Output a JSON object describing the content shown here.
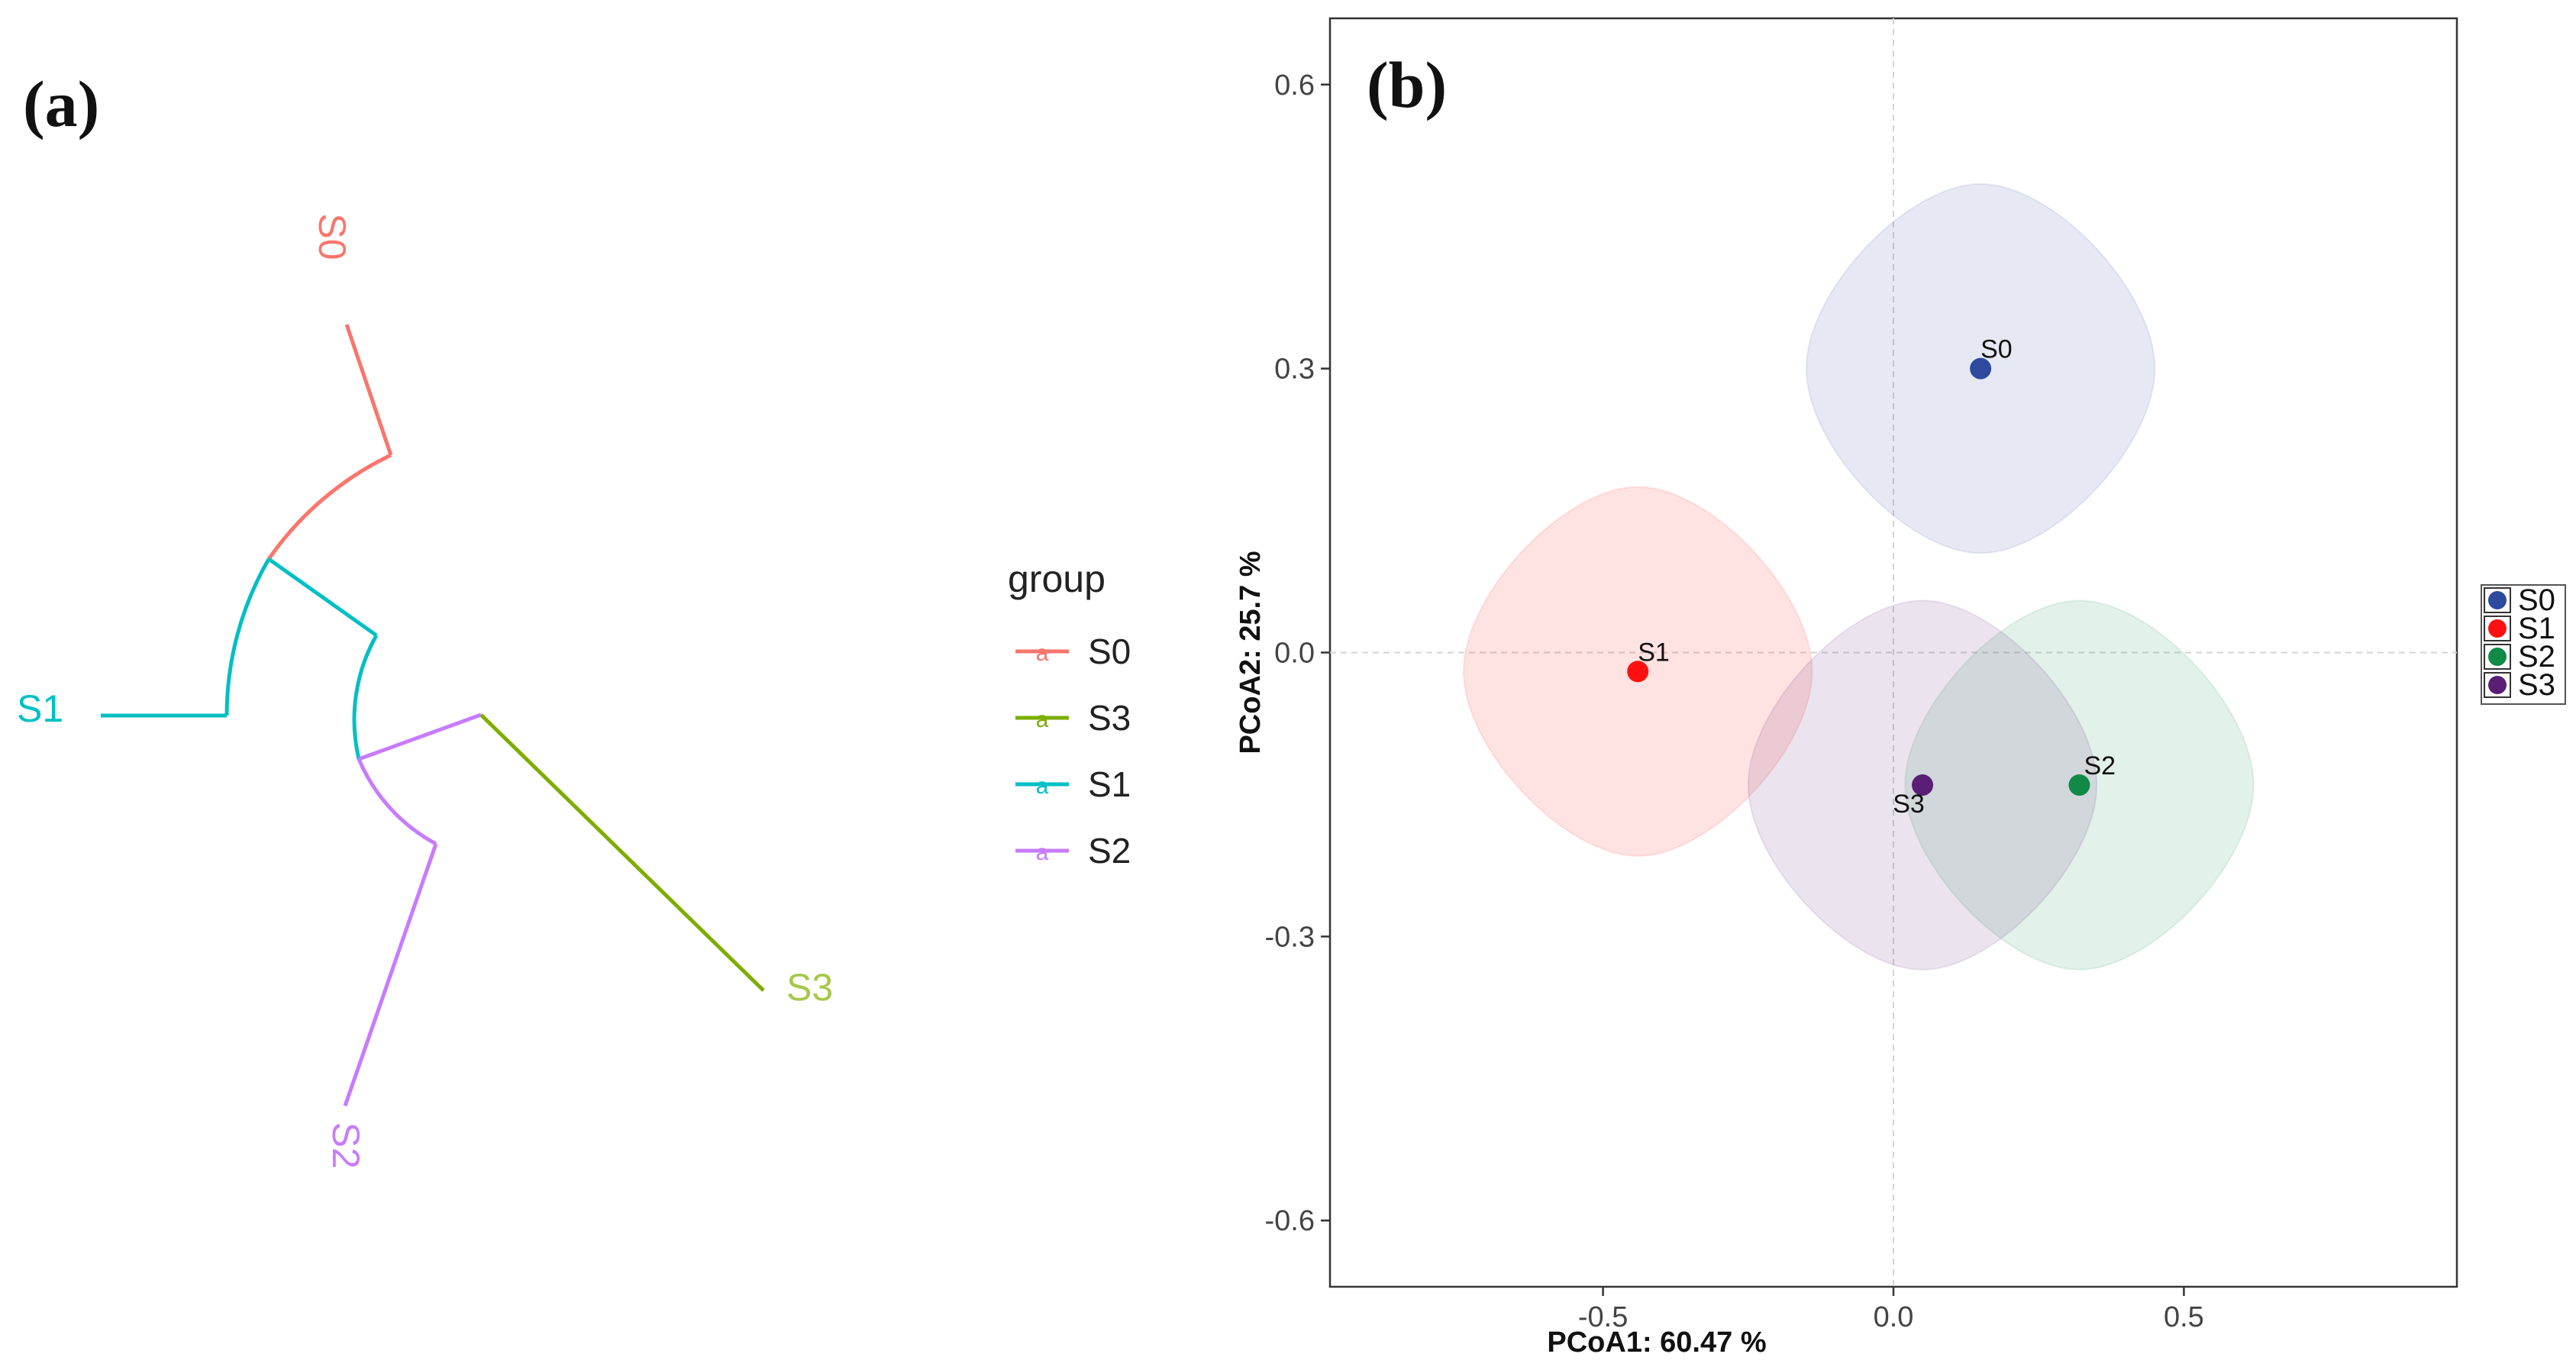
{
  "panels": {
    "a_label": "(a)",
    "b_label": "(b)"
  },
  "colors": {
    "S0_tree": "#F8766D",
    "S3_tree": "#7CAE00",
    "S1_tree": "#00BFC4",
    "S2_tree": "#C77CFF",
    "S0_pcoa": "#2E4A9E",
    "S1_pcoa": "#FF1010",
    "S2_pcoa": "#118A48",
    "S3_pcoa": "#5A1E74"
  },
  "tree": {
    "legend_title": "group",
    "legend_key_glyph": "a",
    "legend_items": [
      {
        "label": "S0",
        "color": "#F8766D"
      },
      {
        "label": "S3",
        "color": "#7CAE00"
      },
      {
        "label": "S1",
        "color": "#00BFC4"
      },
      {
        "label": "S2",
        "color": "#C77CFF"
      }
    ],
    "tips": {
      "S0": "S0",
      "S1": "S1",
      "S2": "S2",
      "S3": "S3"
    }
  },
  "chart_data": {
    "type": "scatter",
    "title": "",
    "xlabel": "PCoA1:  60.47 %",
    "ylabel": "PCoA2:  25.7 %",
    "xlim": [
      -0.97,
      0.97
    ],
    "ylim": [
      -0.67,
      0.67
    ],
    "xticks": [
      -0.5,
      0.0,
      0.5
    ],
    "xtick_labels": [
      "-0.5",
      "0.0",
      "0.5"
    ],
    "yticks": [
      -0.6,
      -0.3,
      0.0,
      0.3,
      0.6
    ],
    "ytick_labels": [
      "-0.6",
      "-0.3",
      "0.0",
      "0.3",
      "0.6"
    ],
    "reference_lines": {
      "x": 0,
      "y": 0
    },
    "points": [
      {
        "name": "S0",
        "x": 0.15,
        "y": 0.3,
        "color": "#2E4A9E"
      },
      {
        "name": "S1",
        "x": -0.44,
        "y": -0.02,
        "color": "#FF1010"
      },
      {
        "name": "S2",
        "x": 0.32,
        "y": -0.14,
        "color": "#118A48"
      },
      {
        "name": "S3",
        "x": 0.05,
        "y": -0.14,
        "color": "#5A1E74"
      }
    ],
    "ellipses_half_width": 0.3,
    "ellipses_half_height": 0.195,
    "legend": [
      "S0",
      "S1",
      "S2",
      "S3"
    ],
    "legend_position": "right"
  }
}
